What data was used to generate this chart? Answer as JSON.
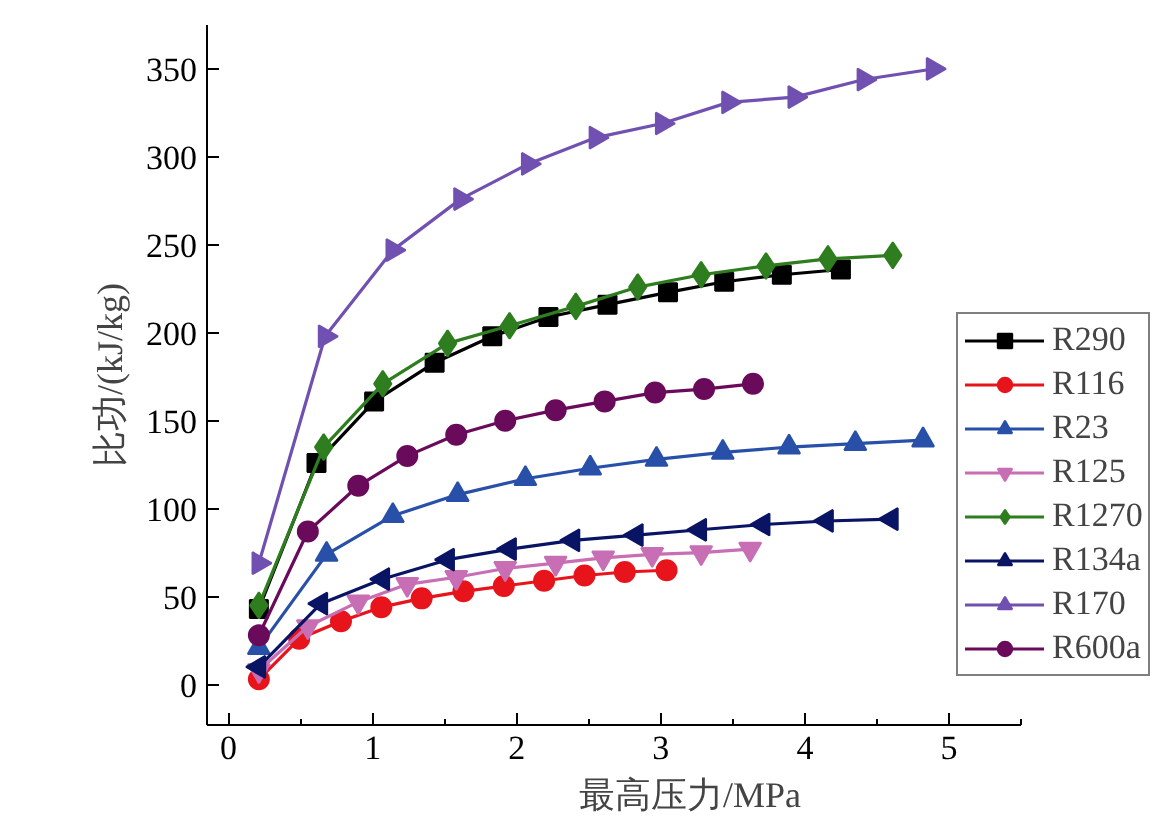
{
  "chart_data": {
    "type": "line",
    "xlabel": "最高压力/MPa",
    "ylabel": "比功/(kJ/kg)",
    "xlim": [
      -0.15,
      5.5
    ],
    "ylim": [
      -23,
      375
    ],
    "xticks": [
      0,
      1,
      2,
      3,
      4,
      5
    ],
    "yticks": [
      0,
      50,
      100,
      150,
      200,
      250,
      300,
      350
    ],
    "grid": false,
    "legend": "right",
    "line_style": "solid",
    "series": [
      {
        "name": "R290",
        "color": "#000000",
        "marker": "square",
        "x": [
          0.21,
          0.61,
          1.01,
          1.43,
          1.83,
          2.22,
          2.63,
          3.05,
          3.44,
          3.84,
          4.25
        ],
        "values": [
          43,
          126,
          161,
          183,
          198,
          209,
          216,
          223,
          229,
          233,
          236
        ]
      },
      {
        "name": "R116",
        "color": "#e8141b",
        "marker": "circle",
        "x": [
          0.21,
          0.49,
          0.78,
          1.06,
          1.34,
          1.63,
          1.91,
          2.19,
          2.47,
          2.75,
          3.04
        ],
        "values": [
          3,
          26,
          36,
          44,
          49,
          53,
          56,
          59,
          62,
          64,
          65
        ]
      },
      {
        "name": "R23",
        "color": "#2850a8",
        "marker": "triangle",
        "x": [
          0.21,
          0.68,
          1.14,
          1.59,
          2.06,
          2.51,
          2.97,
          3.43,
          3.89,
          4.35,
          4.82
        ],
        "values": [
          21,
          74,
          96,
          108,
          117,
          123,
          128,
          132,
          135,
          137,
          139
        ]
      },
      {
        "name": "R125",
        "color": "#c86eb4",
        "marker": "triangle_down",
        "x": [
          0.21,
          0.55,
          0.9,
          1.24,
          1.58,
          1.92,
          2.27,
          2.6,
          2.94,
          3.28,
          3.62
        ],
        "values": [
          8,
          33,
          47,
          57,
          61,
          66,
          69,
          72,
          74,
          75,
          77
        ]
      },
      {
        "name": "R1270",
        "color": "#2e7d1e",
        "marker": "diamond",
        "x": [
          0.21,
          0.66,
          1.07,
          1.52,
          1.95,
          2.41,
          2.84,
          3.28,
          3.73,
          4.16,
          4.61
        ],
        "values": [
          45,
          135,
          171,
          194,
          204,
          215,
          226,
          233,
          238,
          242,
          244
        ]
      },
      {
        "name": "R134a",
        "color": "#0a1464",
        "marker": "triangle_left",
        "x": [
          0.21,
          0.64,
          1.07,
          1.52,
          1.95,
          2.39,
          2.83,
          3.27,
          3.71,
          4.15,
          4.6
        ],
        "values": [
          10,
          46,
          60,
          71,
          77,
          82,
          85,
          88,
          91,
          93,
          94
        ]
      },
      {
        "name": "R170",
        "color": "#7050b0",
        "marker": "triangle_right",
        "x": [
          0.21,
          0.67,
          1.14,
          1.61,
          2.08,
          2.55,
          3.01,
          3.47,
          3.93,
          4.41,
          4.89
        ],
        "values": [
          69,
          198,
          247,
          276,
          296,
          311,
          319,
          331,
          334,
          344,
          350
        ]
      },
      {
        "name": "R600a",
        "color": "#6a0a5a",
        "marker": "circle",
        "x": [
          0.21,
          0.55,
          0.9,
          1.24,
          1.58,
          1.92,
          2.27,
          2.61,
          2.96,
          3.3,
          3.64
        ],
        "values": [
          28,
          87,
          113,
          130,
          142,
          150,
          156,
          161,
          166,
          168,
          171
        ]
      }
    ]
  }
}
